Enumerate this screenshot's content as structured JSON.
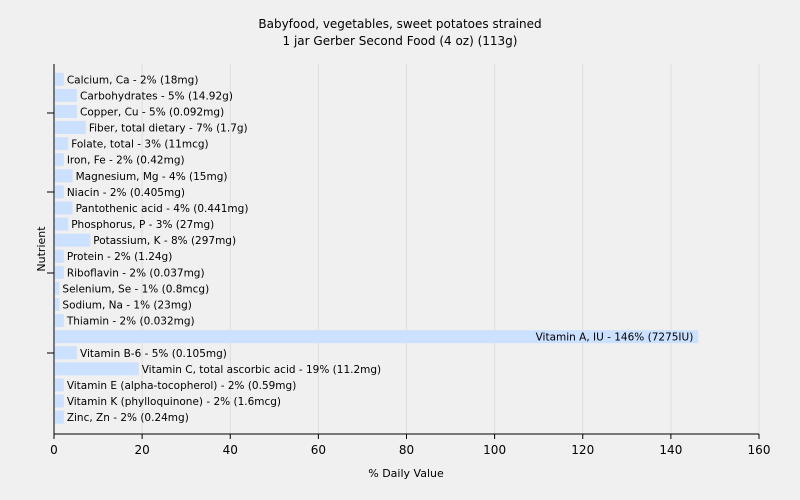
{
  "chart_data": {
    "type": "bar",
    "orientation": "horizontal",
    "title": "Babyfood, vegetables, sweet potatoes strained",
    "subtitle": "1 jar Gerber Second Food (4 oz) (113g)",
    "xlabel": "% Daily Value",
    "ylabel": "Nutrient",
    "xlim": [
      0,
      160
    ],
    "xticks": [
      0,
      20,
      40,
      60,
      80,
      100,
      120,
      140,
      160
    ],
    "grid": true,
    "bar_color": "#cce0ff",
    "categories": [
      "Calcium, Ca - 2% (18mg)",
      "Carbohydrates - 5% (14.92g)",
      "Copper, Cu - 5% (0.092mg)",
      "Fiber, total dietary - 7% (1.7g)",
      "Folate, total - 3% (11mcg)",
      "Iron, Fe - 2% (0.42mg)",
      "Magnesium, Mg - 4% (15mg)",
      "Niacin - 2% (0.405mg)",
      "Pantothenic acid - 4% (0.441mg)",
      "Phosphorus, P - 3% (27mg)",
      "Potassium, K - 8% (297mg)",
      "Protein - 2% (1.24g)",
      "Riboflavin - 2% (0.037mg)",
      "Selenium, Se - 1% (0.8mcg)",
      "Sodium, Na - 1% (23mg)",
      "Thiamin - 2% (0.032mg)",
      "Vitamin A, IU - 146% (7275IU)",
      "Vitamin B-6 - 5% (0.105mg)",
      "Vitamin C, total ascorbic acid - 19% (11.2mg)",
      "Vitamin E (alpha-tocopherol) - 2% (0.59mg)",
      "Vitamin K (phylloquinone) - 2% (1.6mcg)",
      "Zinc, Zn - 2% (0.24mg)"
    ],
    "values": [
      2,
      5,
      5,
      7,
      3,
      2,
      4,
      2,
      4,
      3,
      8,
      2,
      2,
      1,
      1,
      2,
      146,
      5,
      19,
      2,
      2,
      2
    ]
  }
}
